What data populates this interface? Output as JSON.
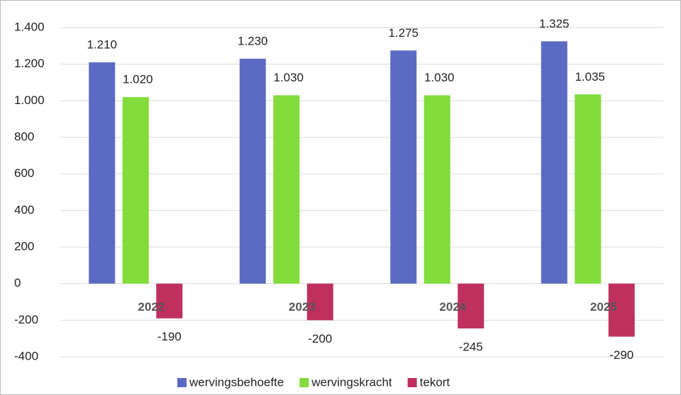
{
  "chart_data": {
    "type": "bar",
    "categories": [
      "2022",
      "2023",
      "2024",
      "2025"
    ],
    "series": [
      {
        "name": "wervingsbehoefte",
        "color": "#5b6bc4",
        "values": [
          1210,
          1230,
          1275,
          1325
        ],
        "value_labels": [
          "1.210",
          "1.230",
          "1.275",
          "1.325"
        ]
      },
      {
        "name": "wervingskracht",
        "color": "#82dc3c",
        "values": [
          1020,
          1030,
          1030,
          1035
        ],
        "value_labels": [
          "1.020",
          "1.030",
          "1.030",
          "1.035"
        ]
      },
      {
        "name": "tekort",
        "color": "#c0305e",
        "values": [
          -190,
          -200,
          -245,
          -290
        ]
      }
    ],
    "ylim": [
      -400,
      1400
    ],
    "yticks": [
      -400,
      -200,
      0,
      200,
      400,
      600,
      800,
      {
        "value": 1000,
        "label": "1.000"
      },
      {
        "value": 1200,
        "label": "1.200"
      },
      {
        "value": 1400,
        "label": "1.400"
      }
    ],
    "grid": true,
    "legend": "bottom"
  }
}
